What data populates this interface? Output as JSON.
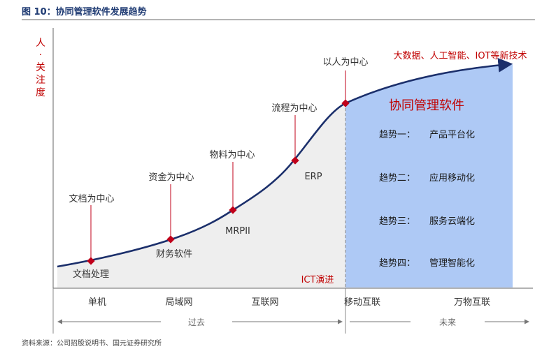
{
  "figure": {
    "title": "图 10：协同管理软件发展趋势",
    "source": "资料来源：公司招股说明书、国元证券研究所"
  },
  "axes": {
    "y_label_chars": [
      "人",
      "·",
      "关",
      "注",
      "度"
    ],
    "x_categories": [
      "单机",
      "局域网",
      "互联网",
      "移动互联",
      "万物互联"
    ],
    "past_label": "过去",
    "future_label": "未来"
  },
  "milestones": {
    "focus_labels": [
      {
        "id": "document",
        "text": "文档为中心"
      },
      {
        "id": "finance",
        "text": "资金为中心"
      },
      {
        "id": "material",
        "text": "物料为中心"
      },
      {
        "id": "process",
        "text": "流程为中心"
      },
      {
        "id": "people",
        "text": "以人为中心"
      }
    ],
    "system_labels": [
      {
        "id": "doc-processing",
        "text": "文档处理"
      },
      {
        "id": "finance-software",
        "text": "财务软件"
      },
      {
        "id": "mrpii",
        "text": "MRPII"
      },
      {
        "id": "erp",
        "text": "ERP"
      }
    ],
    "ict_label": "ICT演进"
  },
  "future_panel": {
    "headline": "大数据、人工智能、IOT等新技术",
    "panel_title": "协同管理软件",
    "trends": [
      {
        "label": "趋势一：",
        "value": "产品平台化"
      },
      {
        "label": "趋势二：",
        "value": "应用移动化"
      },
      {
        "label": "趋势三：",
        "value": "服务云端化"
      },
      {
        "label": "趋势四：",
        "value": "管理智能化"
      }
    ]
  },
  "colors": {
    "curve": "#1b2f6b",
    "panel_fill": "#aec9f5",
    "marker": "#c0001a",
    "title_red": "#c00000",
    "trend_text": "#1a1a1a",
    "area_fill": "#eeeeee"
  }
}
